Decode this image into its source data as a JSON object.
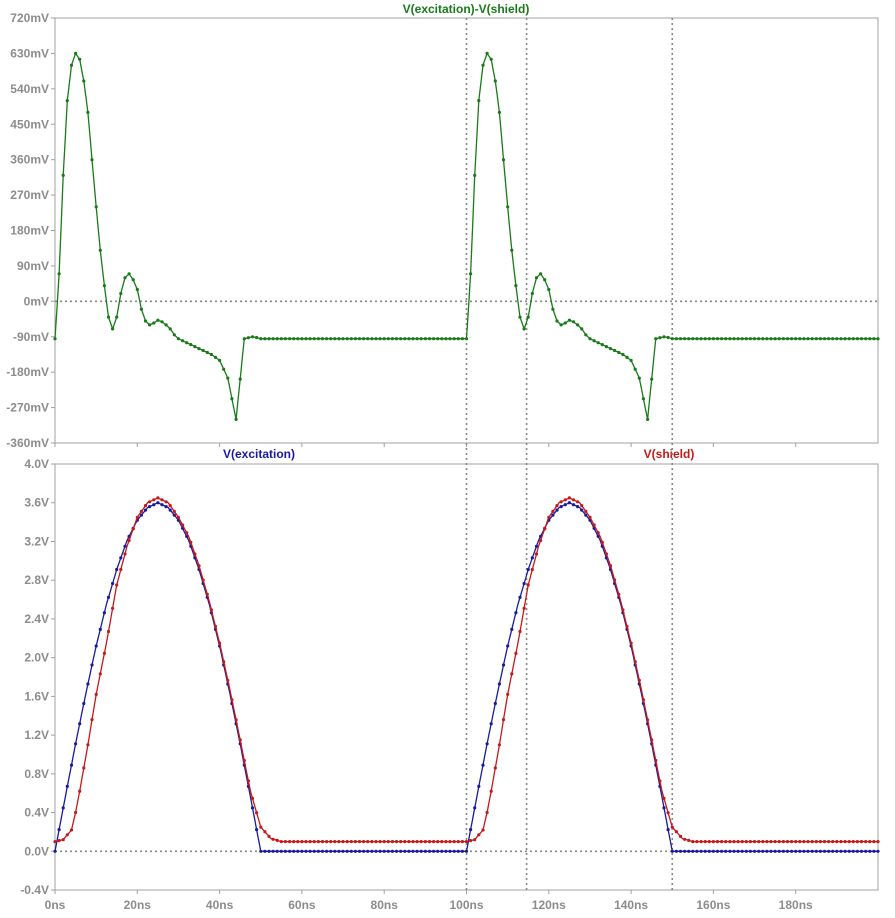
{
  "chart_data": [
    {
      "type": "line",
      "title": "V(excitation)-V(shield)",
      "title_color": "#1a7a1a",
      "ylim": [
        -360,
        720
      ],
      "ylabel": "",
      "xlabel": "",
      "yticks": [
        {
          "value": 720,
          "label": "720mV"
        },
        {
          "value": 630,
          "label": "630mV"
        },
        {
          "value": 540,
          "label": "540mV"
        },
        {
          "value": 450,
          "label": "450mV"
        },
        {
          "value": 360,
          "label": "360mV"
        },
        {
          "value": 270,
          "label": "270mV"
        },
        {
          "value": 180,
          "label": "180mV"
        },
        {
          "value": 90,
          "label": "90mV"
        },
        {
          "value": 0,
          "label": "0mV"
        },
        {
          "value": -90,
          "label": "-90mV"
        },
        {
          "value": -180,
          "label": "-180mV"
        },
        {
          "value": -270,
          "label": "-270mV"
        },
        {
          "value": -360,
          "label": "-360mV"
        }
      ],
      "series": [
        {
          "name": "V(excitation)-V(shield)",
          "color": "#1a7a1a",
          "x": [
            0,
            1,
            2,
            3,
            4,
            5,
            6,
            7,
            8,
            9,
            10,
            11,
            12,
            13,
            14,
            15,
            16,
            17,
            18,
            19,
            20,
            21,
            22,
            23,
            24,
            25,
            26,
            27,
            28,
            29,
            30,
            32,
            34,
            36,
            38,
            40,
            42,
            44,
            46,
            48,
            49,
            50,
            51,
            52,
            54,
            56,
            58,
            60,
            65,
            70,
            75,
            80,
            85,
            90,
            95,
            100,
            101,
            102,
            103,
            104,
            105,
            106,
            107,
            108,
            109,
            110,
            111,
            112,
            113,
            114,
            115,
            116,
            117,
            118,
            119,
            120,
            121,
            122,
            123,
            124,
            125,
            126,
            127,
            128,
            129,
            130,
            132,
            134,
            136,
            138,
            140,
            142,
            144,
            146,
            148,
            149,
            150,
            151,
            152,
            154,
            156,
            158,
            160,
            165,
            170,
            175,
            180,
            185,
            190,
            195,
            200
          ],
          "y": [
            -95,
            70,
            320,
            510,
            600,
            630,
            615,
            560,
            480,
            360,
            240,
            130,
            40,
            -40,
            -70,
            -40,
            20,
            60,
            70,
            55,
            30,
            -20,
            -50,
            -60,
            -55,
            -48,
            -52,
            -60,
            -70,
            -85,
            -95,
            -105,
            -115,
            -125,
            -135,
            -150,
            -195,
            -300,
            -95,
            -90,
            -92,
            -95,
            -95,
            -95,
            -95,
            -95,
            -95,
            -95,
            -95,
            -95,
            -95,
            -95,
            -95,
            -95,
            -95,
            -95,
            70,
            320,
            510,
            600,
            630,
            615,
            560,
            480,
            360,
            240,
            130,
            40,
            -40,
            -70,
            -40,
            20,
            60,
            70,
            55,
            30,
            -20,
            -50,
            -60,
            -55,
            -48,
            -52,
            -60,
            -70,
            -85,
            -95,
            -105,
            -115,
            -125,
            -135,
            -150,
            -195,
            -300,
            -95,
            -90,
            -92,
            -95,
            -95,
            -95,
            -95,
            -95,
            -95,
            -95,
            -95,
            -95,
            -95,
            -95,
            -95,
            -95,
            -95,
            -95
          ]
        }
      ]
    },
    {
      "type": "line",
      "title": "",
      "ylim": [
        -0.4,
        4.0
      ],
      "xlim": [
        0,
        200
      ],
      "ylabel": "",
      "xlabel": "",
      "yticks": [
        {
          "value": 4.0,
          "label": "4.0V"
        },
        {
          "value": 3.6,
          "label": "3.6V"
        },
        {
          "value": 3.2,
          "label": "3.2V"
        },
        {
          "value": 2.8,
          "label": "2.8V"
        },
        {
          "value": 2.4,
          "label": "2.4V"
        },
        {
          "value": 2.0,
          "label": "2.0V"
        },
        {
          "value": 1.6,
          "label": "1.6V"
        },
        {
          "value": 1.2,
          "label": "1.2V"
        },
        {
          "value": 0.8,
          "label": "0.8V"
        },
        {
          "value": 0.4,
          "label": "0.4V"
        },
        {
          "value": 0.0,
          "label": "0.0V"
        },
        {
          "value": -0.4,
          "label": "-0.4V"
        }
      ],
      "xticks": [
        {
          "value": 0,
          "label": "0ns"
        },
        {
          "value": 20,
          "label": "20ns"
        },
        {
          "value": 40,
          "label": "40ns"
        },
        {
          "value": 60,
          "label": "60ns"
        },
        {
          "value": 80,
          "label": "80ns"
        },
        {
          "value": 100,
          "label": "100ns"
        },
        {
          "value": 120,
          "label": "120ns"
        },
        {
          "value": 140,
          "label": "140ns"
        },
        {
          "value": 160,
          "label": "160ns"
        },
        {
          "value": 180,
          "label": "180ns"
        }
      ],
      "series": [
        {
          "name": "V(excitation)",
          "color": "#1a1a9e",
          "x": [
            0,
            2.5,
            5,
            7.5,
            10,
            12.5,
            15,
            17.5,
            20,
            22.5,
            25,
            27.5,
            30,
            32.5,
            35,
            37.5,
            40,
            42.5,
            45,
            47.5,
            50,
            55,
            60,
            70,
            80,
            90,
            100,
            102.5,
            105,
            107.5,
            110,
            112.5,
            115,
            117.5,
            120,
            122.5,
            125,
            127.5,
            130,
            132.5,
            135,
            137.5,
            140,
            142.5,
            145,
            147.5,
            150,
            155,
            160,
            170,
            180,
            190,
            200
          ],
          "y": [
            0,
            0.56,
            1.11,
            1.63,
            2.12,
            2.55,
            2.91,
            3.21,
            3.42,
            3.55,
            3.6,
            3.55,
            3.42,
            3.21,
            2.91,
            2.55,
            2.12,
            1.63,
            1.11,
            0.56,
            0,
            0,
            0,
            0,
            0,
            0,
            0,
            0.56,
            1.11,
            1.63,
            2.12,
            2.55,
            2.91,
            3.21,
            3.42,
            3.55,
            3.6,
            3.55,
            3.42,
            3.21,
            2.91,
            2.55,
            2.12,
            1.63,
            1.11,
            0.56,
            0,
            0,
            0,
            0,
            0,
            0,
            0
          ]
        },
        {
          "name": "V(shield)",
          "color": "#c41a1a",
          "x": [
            0,
            2,
            4,
            5,
            6,
            8,
            10,
            12.5,
            15,
            17.5,
            20,
            22.5,
            25,
            27.5,
            30,
            32.5,
            35,
            37.5,
            40,
            42.5,
            45,
            47.5,
            50,
            52.5,
            55,
            60,
            70,
            80,
            90,
            100,
            102,
            104,
            105,
            106,
            108,
            110,
            112.5,
            115,
            117.5,
            120,
            122.5,
            125,
            127.5,
            130,
            132.5,
            135,
            137.5,
            140,
            142.5,
            145,
            147.5,
            150,
            152.5,
            155,
            160,
            170,
            180,
            190,
            200
          ],
          "y": [
            0.1,
            0.12,
            0.22,
            0.4,
            0.62,
            1.1,
            1.62,
            2.15,
            2.75,
            3.15,
            3.45,
            3.6,
            3.65,
            3.6,
            3.45,
            3.25,
            2.95,
            2.58,
            2.15,
            1.67,
            1.15,
            0.62,
            0.25,
            0.13,
            0.1,
            0.1,
            0.1,
            0.1,
            0.1,
            0.1,
            0.12,
            0.22,
            0.4,
            0.62,
            1.1,
            1.62,
            2.15,
            2.75,
            3.15,
            3.45,
            3.6,
            3.65,
            3.6,
            3.45,
            3.25,
            2.95,
            2.58,
            2.15,
            1.67,
            1.15,
            0.62,
            0.25,
            0.13,
            0.1,
            0.1,
            0.1,
            0.1,
            0.1,
            0.1
          ]
        }
      ],
      "legend": [
        {
          "label": "V(excitation)",
          "color": "#1a1a9e"
        },
        {
          "label": "V(shield)",
          "color": "#c41a1a"
        }
      ]
    }
  ],
  "cursors": [
    {
      "name": "cursor-1",
      "x": 100
    },
    {
      "name": "cursor-2",
      "x": 114.6
    },
    {
      "name": "cursor-3",
      "x": 150
    }
  ]
}
